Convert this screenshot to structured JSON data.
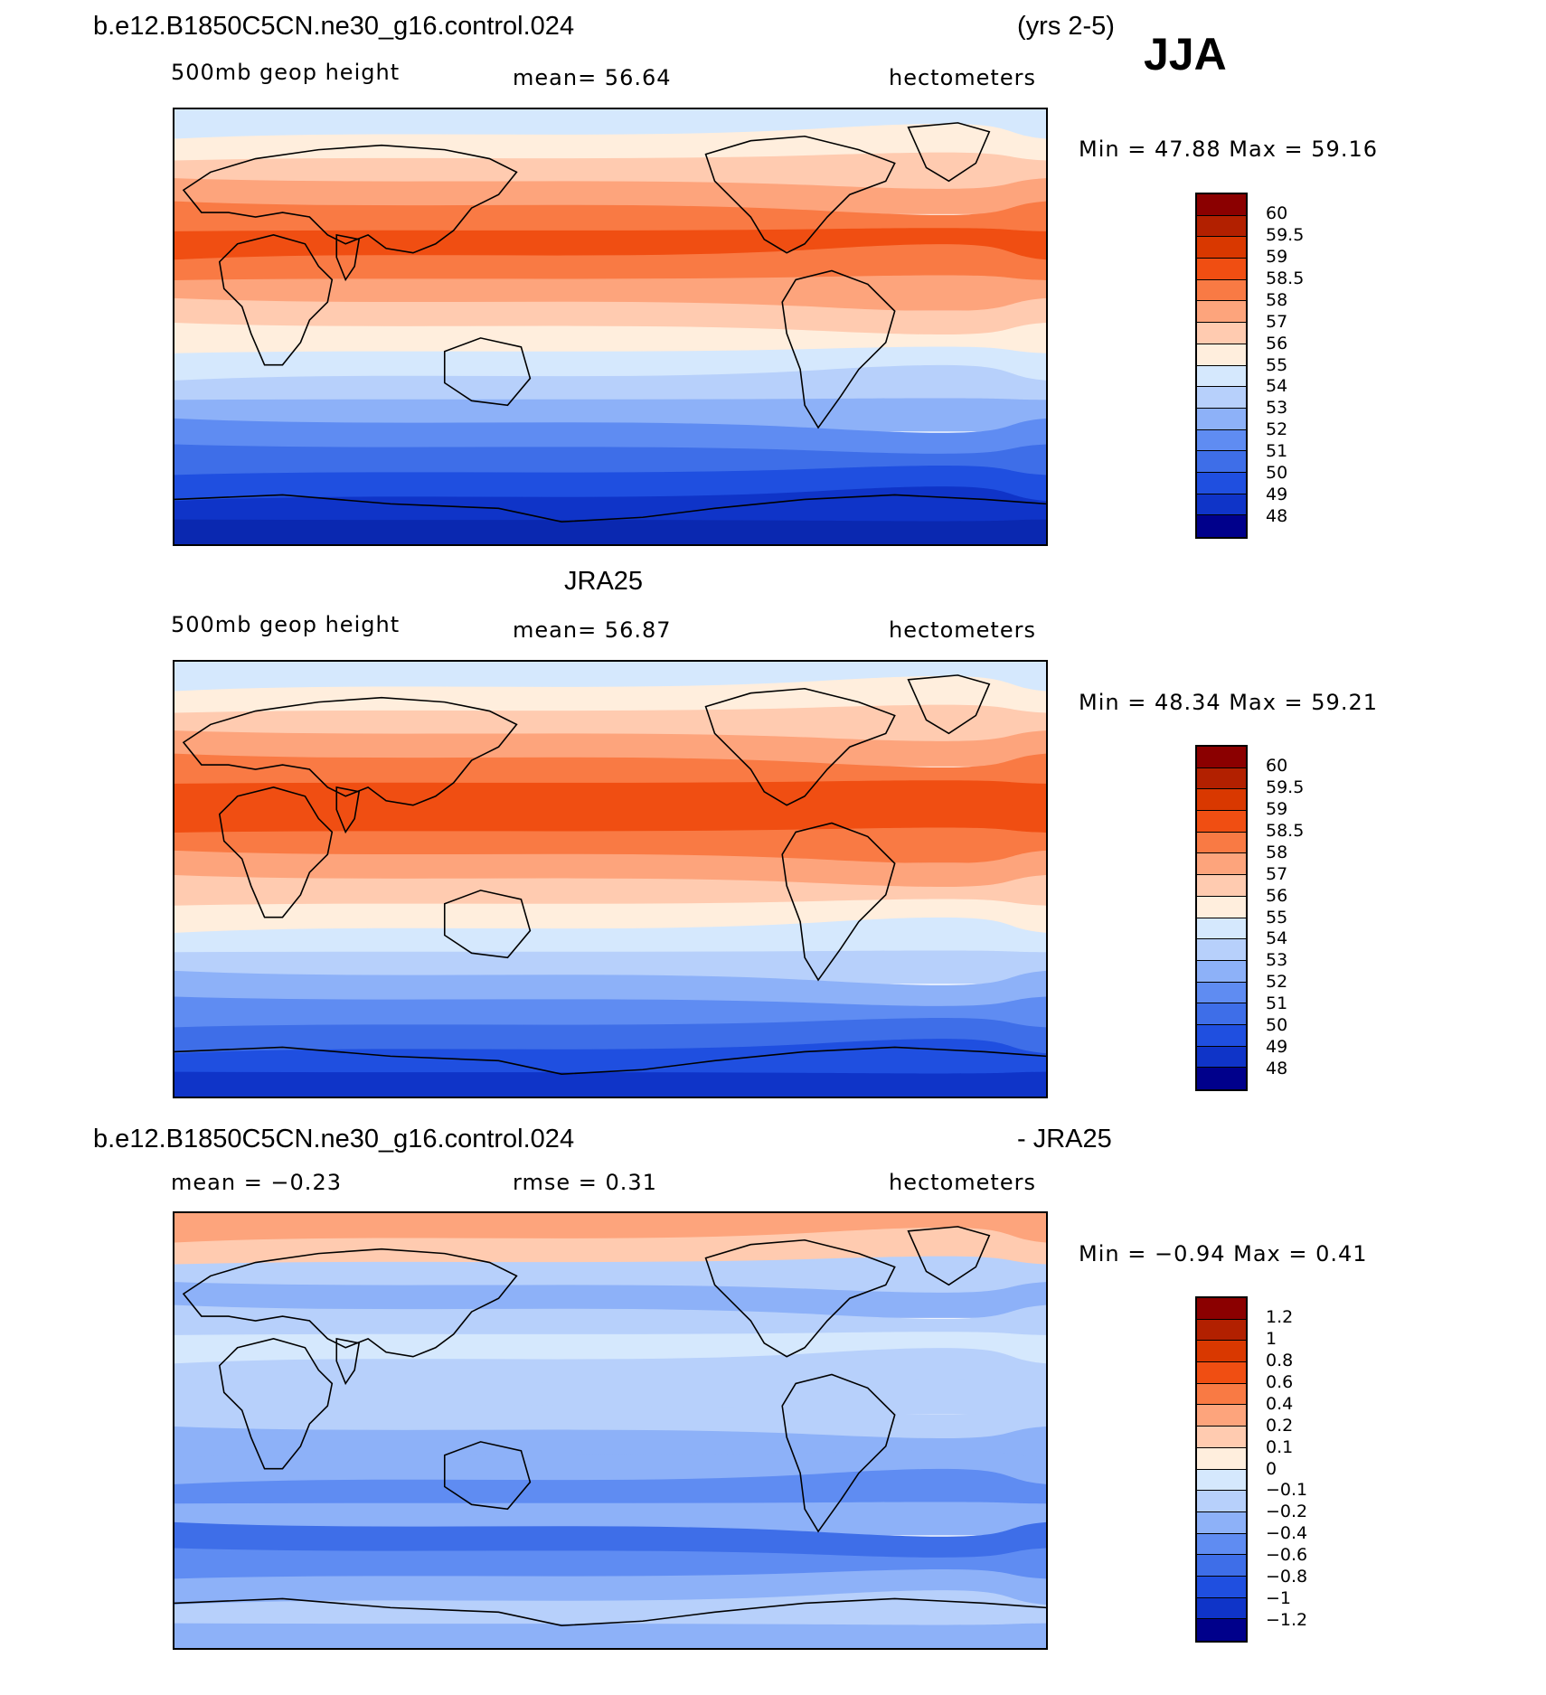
{
  "header": {
    "case_title": "b.e12.B1850C5CN.ne30_g16.control.024",
    "years": "(yrs 2-5)",
    "season": "JJA"
  },
  "panels": [
    {
      "id": "model",
      "title": "",
      "variable": "500mb geop height",
      "stat_left": "",
      "mean_text": "mean=   56.64",
      "units": "hectometers",
      "min_max": "Min =   47.88  Max =   59.16",
      "colorbar": {
        "labels": [
          "60",
          "59.5",
          "59",
          "58.5",
          "58",
          "57",
          "56",
          "55",
          "54",
          "53",
          "52",
          "51",
          "50",
          "49",
          "48"
        ],
        "colors": [
          "#8b0000",
          "#b22000",
          "#d93800",
          "#f04e12",
          "#f97a44",
          "#fda47c",
          "#ffcbb0",
          "#ffeedd",
          "#d5e8fd",
          "#b7d0fb",
          "#8db1f8",
          "#5f8cf2",
          "#3e6ee8",
          "#1f4fe0",
          "#0f34c8",
          "#00008b"
        ]
      },
      "field_bands": [
        "#d5e8fd",
        "#ffeedd",
        "#ffcbb0",
        "#fda47c",
        "#f97a44",
        "#f04e12",
        "#f97a44",
        "#fda47c",
        "#ffcbb0",
        "#ffeedd",
        "#d5e8fd",
        "#b7d0fb",
        "#8db1f8",
        "#5f8cf2",
        "#3e6ee8",
        "#1f4fe0",
        "#0f34c8",
        "#0a28b0"
      ]
    },
    {
      "id": "obs",
      "title": "JRA25",
      "variable": "500mb geop height",
      "stat_left": "",
      "mean_text": "mean=   56.87",
      "units": "hectometers",
      "min_max": "Min =   48.34  Max =   59.21",
      "colorbar": {
        "labels": [
          "60",
          "59.5",
          "59",
          "58.5",
          "58",
          "57",
          "56",
          "55",
          "54",
          "53",
          "52",
          "51",
          "50",
          "49",
          "48"
        ],
        "colors": [
          "#8b0000",
          "#b22000",
          "#d93800",
          "#f04e12",
          "#f97a44",
          "#fda47c",
          "#ffcbb0",
          "#ffeedd",
          "#d5e8fd",
          "#b7d0fb",
          "#8db1f8",
          "#5f8cf2",
          "#3e6ee8",
          "#1f4fe0",
          "#0f34c8",
          "#00008b"
        ]
      },
      "field_bands": [
        "#d5e8fd",
        "#ffeedd",
        "#ffcbb0",
        "#fda47c",
        "#f97a44",
        "#f04e12",
        "#f04e12",
        "#f97a44",
        "#fda47c",
        "#ffcbb0",
        "#ffeedd",
        "#d5e8fd",
        "#b7d0fb",
        "#8db1f8",
        "#5f8cf2",
        "#3e6ee8",
        "#1f4fe0",
        "#0f34c8"
      ]
    },
    {
      "id": "diff",
      "title": "b.e12.B1850C5CN.ne30_g16.control.024",
      "title_right": "- JRA25",
      "variable": "",
      "stat_left": "mean =   −0.23",
      "mean_text": "rmse =    0.31",
      "units": "hectometers",
      "min_max": "Min =   −0.94  Max =    0.41",
      "colorbar": {
        "labels": [
          "1.2",
          "1",
          "0.8",
          "0.6",
          "0.4",
          "0.2",
          "0.1",
          "0",
          "−0.1",
          "−0.2",
          "−0.4",
          "−0.6",
          "−0.8",
          "−1",
          "−1.2"
        ],
        "colors": [
          "#8b0000",
          "#b22000",
          "#d93800",
          "#f04e12",
          "#f97a44",
          "#fda47c",
          "#ffcbb0",
          "#ffeedd",
          "#d5e8fd",
          "#b7d0fb",
          "#8db1f8",
          "#5f8cf2",
          "#3e6ee8",
          "#1f4fe0",
          "#0f34c8",
          "#00008b"
        ]
      },
      "field_bands": [
        "#fda47c",
        "#ffcbb0",
        "#b7d0fb",
        "#8db1f8",
        "#b7d0fb",
        "#d5e8fd",
        "#b7d0fb",
        "#b7d0fb",
        "#b7d0fb",
        "#8db1f8",
        "#8db1f8",
        "#5f8cf2",
        "#8db1f8",
        "#3e6ee8",
        "#5f8cf2",
        "#8db1f8",
        "#b7d0fb",
        "#8db1f8"
      ]
    }
  ]
}
